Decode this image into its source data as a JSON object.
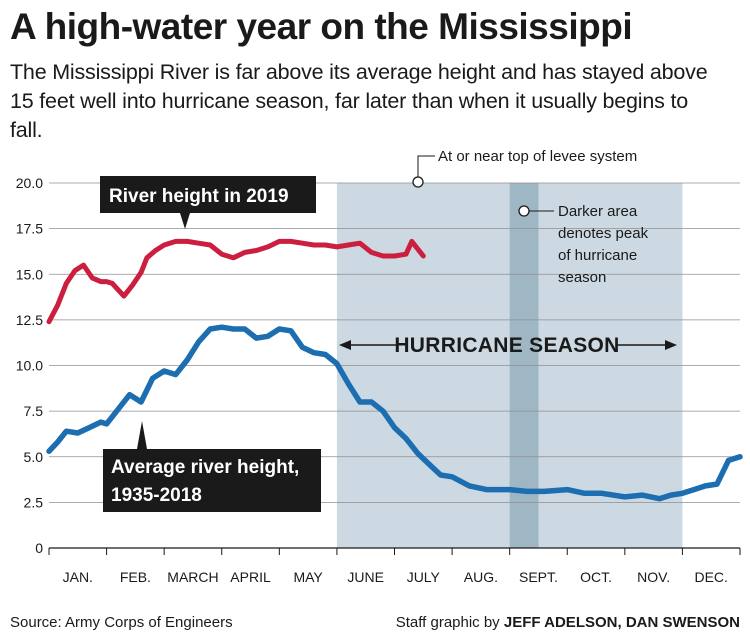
{
  "header": {
    "title": "A high-water year on the Mississippi",
    "subtitle": "The Mississippi River is far above its average height and has stayed above 15 feet well into hurricane season, far later than when it usually begins to fall."
  },
  "footer": {
    "source": "Source: Army Corps of Engineers",
    "credit_prefix": "Staff graphic by ",
    "credit_names": "JEFF ADELSON, DAN SWENSON"
  },
  "colors": {
    "river_2019": "#cc1f3f",
    "average": "#1c6eb0",
    "season_fill": "#ccd9e2",
    "peak_fill": "#9fb6c4",
    "label_box": "#1a1a1a"
  },
  "chart_data": {
    "type": "line",
    "ylim": [
      0,
      20
    ],
    "yticks": [
      "0",
      "2.5",
      "5.0",
      "7.5",
      "10.0",
      "12.5",
      "15.0",
      "17.5",
      "20.0"
    ],
    "ytick_values": [
      0,
      2.5,
      5,
      7.5,
      10,
      12.5,
      15,
      17.5,
      20
    ],
    "xlim": [
      0,
      12
    ],
    "months": [
      "JAN.",
      "FEB.",
      "MARCH",
      "APRIL",
      "MAY",
      "JUNE",
      "JULY",
      "AUG.",
      "SEPT.",
      "OCT.",
      "NOV.",
      "DEC."
    ],
    "hurricane_season": [
      5.0,
      11.0
    ],
    "peak_hurricane_season": [
      8.0,
      8.5
    ],
    "series": [
      {
        "name": "River height in 2019",
        "x": [
          0,
          0.15,
          0.3,
          0.45,
          0.6,
          0.75,
          0.9,
          1.0,
          1.1,
          1.3,
          1.45,
          1.6,
          1.7,
          1.85,
          2.0,
          2.2,
          2.4,
          2.6,
          2.8,
          3.0,
          3.2,
          3.4,
          3.6,
          3.8,
          4.0,
          4.2,
          4.4,
          4.6,
          4.8,
          5.0,
          5.2,
          5.4,
          5.6,
          5.8,
          6.0,
          6.2,
          6.3,
          6.4,
          6.5
        ],
        "y": [
          12.4,
          13.3,
          14.5,
          15.2,
          15.5,
          14.8,
          14.6,
          14.6,
          14.5,
          13.8,
          14.4,
          15.1,
          15.9,
          16.3,
          16.6,
          16.8,
          16.8,
          16.7,
          16.6,
          16.1,
          15.9,
          16.2,
          16.3,
          16.5,
          16.8,
          16.8,
          16.7,
          16.6,
          16.6,
          16.5,
          16.6,
          16.7,
          16.2,
          16.0,
          16.0,
          16.1,
          16.8,
          16.4,
          16.0
        ]
      },
      {
        "name": "Average river height, 1935-2018",
        "x": [
          0,
          0.15,
          0.3,
          0.5,
          0.7,
          0.9,
          1.0,
          1.2,
          1.4,
          1.6,
          1.8,
          2.0,
          2.2,
          2.4,
          2.6,
          2.8,
          3.0,
          3.2,
          3.4,
          3.6,
          3.8,
          4.0,
          4.2,
          4.4,
          4.6,
          4.8,
          5.0,
          5.2,
          5.4,
          5.6,
          5.8,
          6.0,
          6.2,
          6.4,
          6.6,
          6.8,
          7.0,
          7.3,
          7.6,
          8.0,
          8.3,
          8.6,
          9.0,
          9.3,
          9.6,
          10.0,
          10.3,
          10.6,
          10.8,
          11.0,
          11.2,
          11.4,
          11.6,
          11.8,
          12.0
        ],
        "y": [
          5.3,
          5.8,
          6.4,
          6.3,
          6.6,
          6.9,
          6.8,
          7.6,
          8.4,
          8.0,
          9.3,
          9.7,
          9.5,
          10.3,
          11.3,
          12.0,
          12.1,
          12.0,
          12.0,
          11.5,
          11.6,
          12.0,
          11.9,
          11.0,
          10.7,
          10.6,
          10.1,
          9.0,
          8.0,
          8.0,
          7.5,
          6.6,
          6.0,
          5.2,
          4.6,
          4.0,
          3.9,
          3.4,
          3.2,
          3.2,
          3.1,
          3.1,
          3.2,
          3.0,
          3.0,
          2.8,
          2.9,
          2.7,
          2.9,
          3.0,
          3.2,
          3.4,
          3.5,
          4.8,
          5.0
        ]
      }
    ],
    "annotations": {
      "levee": "At or near top of levee system",
      "peak_line1": "Darker area",
      "peak_line2": "denotes peak",
      "peak_line3": "of hurricane",
      "peak_line4": "season",
      "hurricane_season": "HURRICANE SEASON",
      "label_2019": "River height in 2019",
      "label_avg_line1": "Average river height,",
      "label_avg_line2": "1935-2018"
    }
  }
}
